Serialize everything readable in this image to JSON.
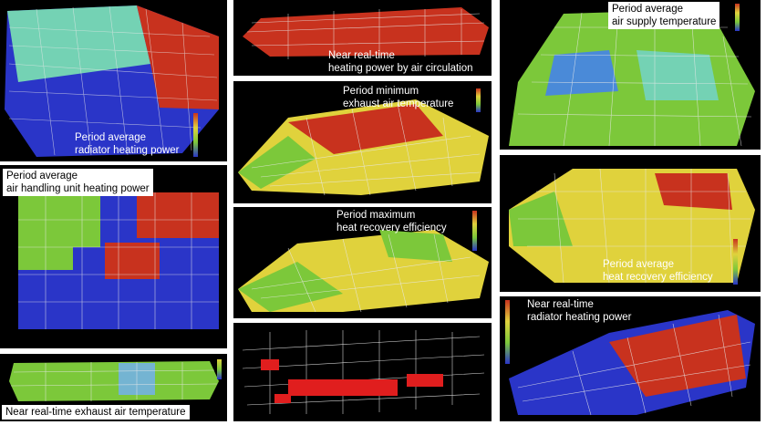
{
  "panels": [
    {
      "id": "p1",
      "caption": [
        "Period average",
        "radiator heating power"
      ]
    },
    {
      "id": "p2",
      "caption": [
        "Near real-time",
        "heating power by air circulation"
      ]
    },
    {
      "id": "p3",
      "caption": [
        "Period average",
        "air supply temperature"
      ]
    },
    {
      "id": "p4",
      "caption": [
        "Period minimum",
        "exhaust air temperature"
      ]
    },
    {
      "id": "p5",
      "caption": [
        "Period average",
        "air handling unit heating power"
      ]
    },
    {
      "id": "p6",
      "caption": [
        "Period maximum",
        "heat recovery efficiency"
      ]
    },
    {
      "id": "p7",
      "caption": [
        "Period average",
        "heat recovery efficiency"
      ]
    },
    {
      "id": "p8",
      "caption": [
        "Near real-time exhaust air temperature"
      ]
    },
    {
      "id": "p9",
      "caption": []
    },
    {
      "id": "p10",
      "caption": [
        "Near real-time",
        "radiator heating power"
      ]
    }
  ],
  "colors": {
    "red": "#c8321e",
    "blue": "#2a35c8",
    "green": "#7cc83a",
    "yellow": "#e0d23c",
    "teal": "#74d2b4",
    "wire": "#e8e8e8"
  }
}
